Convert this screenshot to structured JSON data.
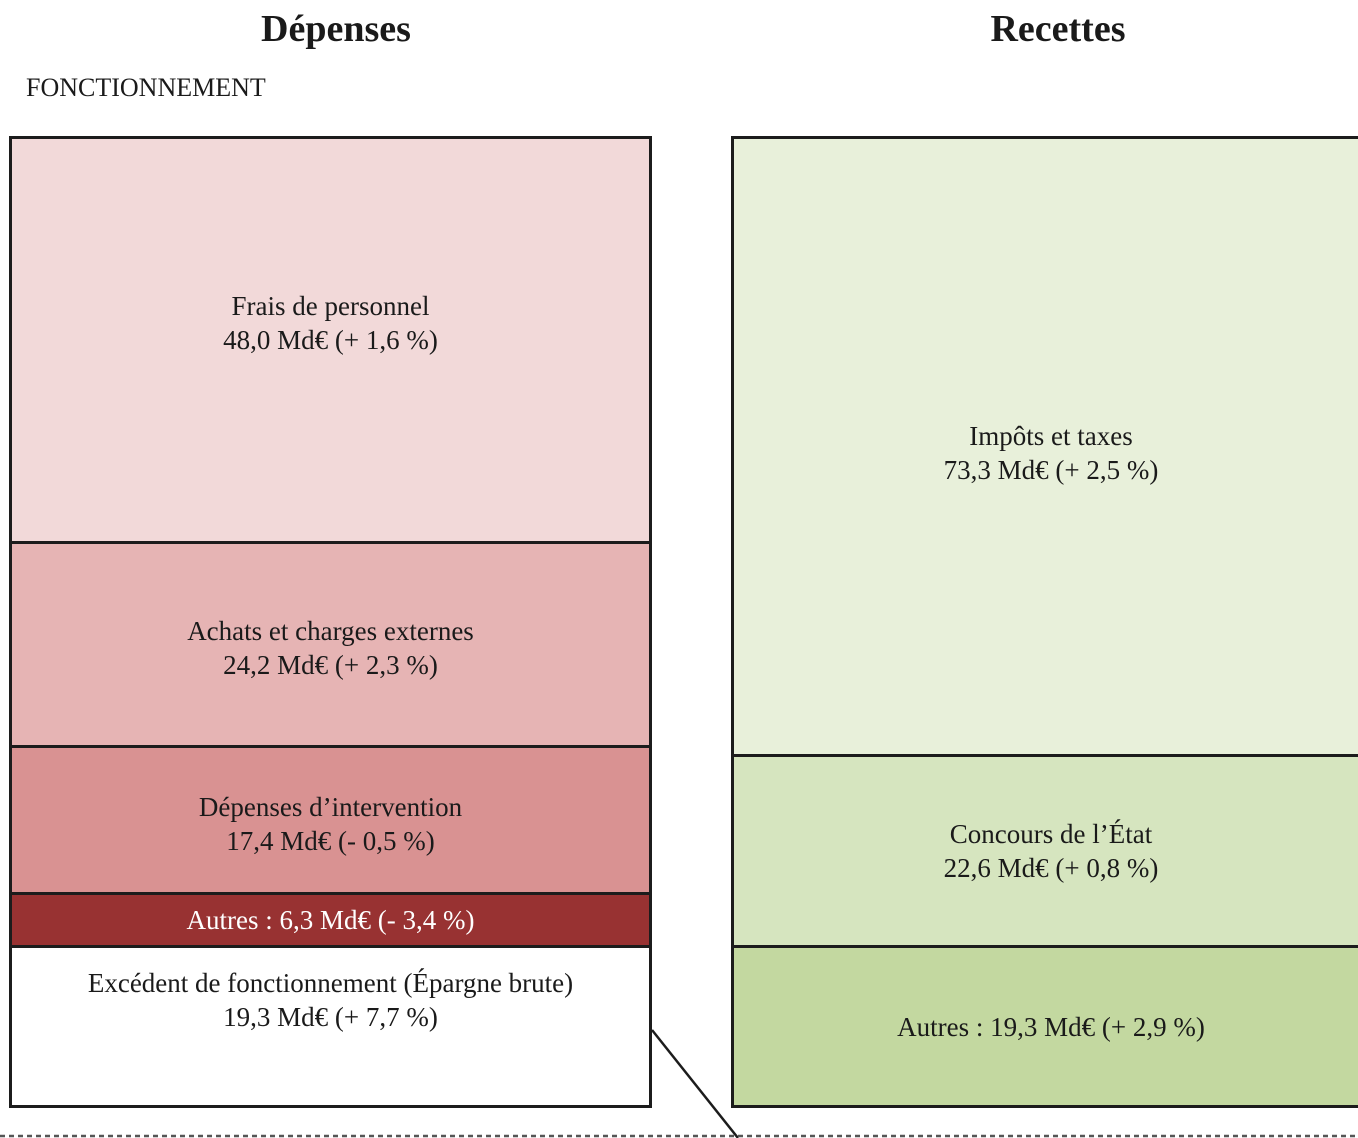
{
  "headings": {
    "depenses": "Dépenses",
    "recettes": "Recettes"
  },
  "section": "FONCTIONNEMENT",
  "chart_data": {
    "type": "stacked-bar",
    "unit": "Md€",
    "columns": [
      {
        "name": "Dépenses",
        "blocks": [
          {
            "label": "Frais de personnel",
            "value": 48.0,
            "text": "48,0 Md€ (+ 1,6 %)",
            "color": "#f2d9d9",
            "text_color": "#1a1a1a"
          },
          {
            "label": "Achats et charges externes",
            "value": 24.2,
            "text": "24,2 Md€ (+ 2,3 %)",
            "color": "#e6b4b4",
            "text_color": "#1a1a1a"
          },
          {
            "label": "Dépenses d’intervention",
            "value": 17.4,
            "text": "17,4 Md€ (- 0,5 %)",
            "color": "#d99292",
            "text_color": "#1a1a1a"
          },
          {
            "label": "Autres : 6,3 Md€ (- 3,4 %)",
            "value": 6.3,
            "text": "",
            "color": "#983232",
            "text_color": "#ffffff",
            "single_line": true
          },
          {
            "label": "Excédent de fonctionnement (Épargne brute)",
            "value": 19.3,
            "text": "19,3 Md€ (+ 7,7 %)",
            "color": "#ffffff",
            "text_color": "#1a1a1a"
          }
        ]
      },
      {
        "name": "Recettes",
        "blocks": [
          {
            "label": "Impôts et taxes",
            "value": 73.3,
            "text": "73,3 Md€ (+ 2,5 %)",
            "color": "#e8f0da",
            "text_color": "#1a1a1a"
          },
          {
            "label": "Concours de l’État",
            "value": 22.6,
            "text": "22,6 Md€ (+ 0,8 %)",
            "color": "#d6e5bf",
            "text_color": "#1a1a1a"
          },
          {
            "label": "Autres : 19,3 Md€ (+ 2,9 %)",
            "value": 19.3,
            "text": "",
            "color": "#c3d8a0",
            "text_color": "#1a1a1a",
            "single_line": true
          }
        ]
      }
    ]
  }
}
